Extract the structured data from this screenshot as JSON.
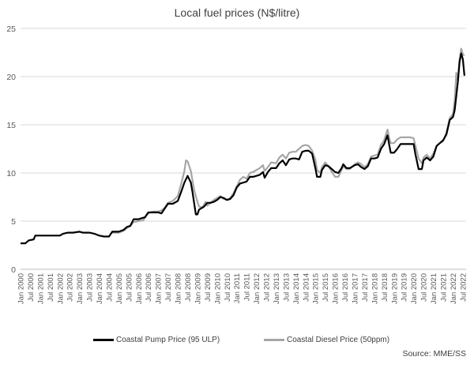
{
  "chart_data": {
    "type": "line",
    "title": "Local fuel prices (N$/litre)",
    "xlabel": "",
    "ylabel": "",
    "ylim": [
      0,
      25
    ],
    "yticks": [
      0,
      5,
      10,
      15,
      20,
      25
    ],
    "x_tick_labels": [
      "Jan 2000",
      "Jul 2000",
      "Jan 2001",
      "Jul 2001",
      "Jan 2002",
      "Jul 2002",
      "Jan 2003",
      "Jul 2003",
      "Jan 2004",
      "Jul 2004",
      "Jan 2005",
      "Jul 2005",
      "Jan 2006",
      "Jul 2006",
      "Jan 2007",
      "Jul 2007",
      "Jan 2008",
      "Jul 2008",
      "Jan 2009",
      "Jul 2009",
      "Jan 2010",
      "Jul 2010",
      "Jan 2011",
      "Jul 2011",
      "Jan 2012",
      "Jul 2012",
      "Jan 2013",
      "Jul 2013",
      "Jan 2014",
      "Jul 2014",
      "Jan 2015",
      "Jul 2015",
      "Jan 2016",
      "Jul 2016",
      "Jan 2017",
      "Jul 2017",
      "Jan 2018",
      "Jul 2018",
      "Jan 2019",
      "Jul 2019",
      "Jan 2020",
      "Jul 2020",
      "Jan 2021",
      "Jul 2021",
      "Jan 2022",
      "Jul 2022"
    ],
    "grid": true,
    "legend_position": "bottom",
    "series": [
      {
        "name": "Coastal Pump Price (95 ULP)",
        "color": "#000000",
        "points": [
          [
            "2000-01",
            2.7
          ],
          [
            "2000-04",
            2.7
          ],
          [
            "2000-06",
            3.0
          ],
          [
            "2000-09",
            3.1
          ],
          [
            "2000-10",
            3.5
          ],
          [
            "2001-01",
            3.5
          ],
          [
            "2001-07",
            3.5
          ],
          [
            "2002-01",
            3.5
          ],
          [
            "2002-03",
            3.7
          ],
          [
            "2002-06",
            3.8
          ],
          [
            "2002-09",
            3.8
          ],
          [
            "2003-01",
            3.9
          ],
          [
            "2003-03",
            3.8
          ],
          [
            "2003-07",
            3.8
          ],
          [
            "2003-10",
            3.7
          ],
          [
            "2004-01",
            3.5
          ],
          [
            "2004-04",
            3.4
          ],
          [
            "2004-07",
            3.4
          ],
          [
            "2004-09",
            3.9
          ],
          [
            "2005-01",
            3.9
          ],
          [
            "2005-04",
            4.1
          ],
          [
            "2005-06",
            4.4
          ],
          [
            "2005-08",
            4.5
          ],
          [
            "2005-10",
            5.2
          ],
          [
            "2006-01",
            5.2
          ],
          [
            "2006-05",
            5.4
          ],
          [
            "2006-07",
            5.9
          ],
          [
            "2006-10",
            5.9
          ],
          [
            "2007-01",
            5.9
          ],
          [
            "2007-03",
            5.8
          ],
          [
            "2007-05",
            6.3
          ],
          [
            "2007-07",
            6.8
          ],
          [
            "2007-10",
            6.8
          ],
          [
            "2008-01",
            7.1
          ],
          [
            "2008-03",
            8.0
          ],
          [
            "2008-05",
            9.0
          ],
          [
            "2008-07",
            9.7
          ],
          [
            "2008-09",
            9.0
          ],
          [
            "2008-10",
            8.0
          ],
          [
            "2008-12",
            5.7
          ],
          [
            "2009-01",
            5.7
          ],
          [
            "2009-02",
            6.2
          ],
          [
            "2009-05",
            6.5
          ],
          [
            "2009-07",
            6.9
          ],
          [
            "2009-09",
            6.9
          ],
          [
            "2009-11",
            7.0
          ],
          [
            "2010-01",
            7.2
          ],
          [
            "2010-03",
            7.5
          ],
          [
            "2010-05",
            7.4
          ],
          [
            "2010-07",
            7.2
          ],
          [
            "2010-09",
            7.3
          ],
          [
            "2010-11",
            7.7
          ],
          [
            "2011-01",
            8.5
          ],
          [
            "2011-03",
            8.9
          ],
          [
            "2011-05",
            9.0
          ],
          [
            "2011-07",
            9.1
          ],
          [
            "2011-09",
            9.6
          ],
          [
            "2011-11",
            9.6
          ],
          [
            "2012-01",
            9.7
          ],
          [
            "2012-03",
            9.8
          ],
          [
            "2012-05",
            10.1
          ],
          [
            "2012-06",
            9.5
          ],
          [
            "2012-08",
            10.1
          ],
          [
            "2012-10",
            10.5
          ],
          [
            "2013-01",
            10.5
          ],
          [
            "2013-03",
            11.0
          ],
          [
            "2013-05",
            11.3
          ],
          [
            "2013-07",
            10.8
          ],
          [
            "2013-09",
            11.4
          ],
          [
            "2013-11",
            11.5
          ],
          [
            "2014-01",
            11.5
          ],
          [
            "2014-03",
            11.4
          ],
          [
            "2014-05",
            12.2
          ],
          [
            "2014-07",
            12.3
          ],
          [
            "2014-09",
            12.3
          ],
          [
            "2014-11",
            12.0
          ],
          [
            "2015-01",
            10.5
          ],
          [
            "2015-02",
            9.6
          ],
          [
            "2015-04",
            9.6
          ],
          [
            "2015-05",
            10.3
          ],
          [
            "2015-07",
            10.8
          ],
          [
            "2015-09",
            10.7
          ],
          [
            "2015-11",
            10.4
          ],
          [
            "2016-01",
            10.1
          ],
          [
            "2016-03",
            10.0
          ],
          [
            "2016-05",
            10.5
          ],
          [
            "2016-06",
            10.9
          ],
          [
            "2016-08",
            10.5
          ],
          [
            "2016-10",
            10.5
          ],
          [
            "2017-01",
            10.8
          ],
          [
            "2017-03",
            10.9
          ],
          [
            "2017-05",
            10.6
          ],
          [
            "2017-07",
            10.4
          ],
          [
            "2017-09",
            10.7
          ],
          [
            "2017-11",
            11.5
          ],
          [
            "2018-01",
            11.5
          ],
          [
            "2018-03",
            11.6
          ],
          [
            "2018-05",
            12.5
          ],
          [
            "2018-07",
            13.0
          ],
          [
            "2018-09",
            13.9
          ],
          [
            "2018-10",
            13.0
          ],
          [
            "2018-11",
            12.1
          ],
          [
            "2019-01",
            12.1
          ],
          [
            "2019-03",
            12.5
          ],
          [
            "2019-05",
            13.0
          ],
          [
            "2019-07",
            13.0
          ],
          [
            "2019-09",
            13.0
          ],
          [
            "2019-11",
            13.0
          ],
          [
            "2020-01",
            13.0
          ],
          [
            "2020-02",
            12.0
          ],
          [
            "2020-04",
            10.4
          ],
          [
            "2020-06",
            10.4
          ],
          [
            "2020-07",
            11.3
          ],
          [
            "2020-09",
            11.6
          ],
          [
            "2020-11",
            11.3
          ],
          [
            "2021-01",
            11.7
          ],
          [
            "2021-03",
            12.8
          ],
          [
            "2021-05",
            13.1
          ],
          [
            "2021-07",
            13.4
          ],
          [
            "2021-09",
            14.0
          ],
          [
            "2021-11",
            15.5
          ],
          [
            "2022-01",
            15.8
          ],
          [
            "2022-02",
            16.5
          ],
          [
            "2022-03",
            18.0
          ],
          [
            "2022-04",
            19.5
          ],
          [
            "2022-05",
            21.5
          ],
          [
            "2022-06",
            22.4
          ],
          [
            "2022-07",
            21.8
          ],
          [
            "2022-08",
            20.1
          ]
        ]
      },
      {
        "name": "Coastal Diesel Price (50ppm)",
        "color": "#a6a6a6",
        "points": [
          [
            "2004-09",
            3.8
          ],
          [
            "2005-01",
            3.8
          ],
          [
            "2005-04",
            4.0
          ],
          [
            "2005-06",
            4.3
          ],
          [
            "2005-08",
            4.5
          ],
          [
            "2005-10",
            4.9
          ],
          [
            "2006-01",
            5.0
          ],
          [
            "2006-04",
            5.1
          ],
          [
            "2006-06",
            5.7
          ],
          [
            "2006-08",
            5.9
          ],
          [
            "2006-10",
            6.0
          ],
          [
            "2007-01",
            6.0
          ],
          [
            "2007-03",
            6.1
          ],
          [
            "2007-05",
            6.4
          ],
          [
            "2007-07",
            6.9
          ],
          [
            "2007-10",
            7.1
          ],
          [
            "2008-01",
            7.6
          ],
          [
            "2008-03",
            8.8
          ],
          [
            "2008-05",
            10.2
          ],
          [
            "2008-06",
            11.3
          ],
          [
            "2008-07",
            11.2
          ],
          [
            "2008-09",
            10.2
          ],
          [
            "2008-11",
            8.2
          ],
          [
            "2009-01",
            7.0
          ],
          [
            "2009-02",
            6.5
          ],
          [
            "2009-04",
            6.4
          ],
          [
            "2009-06",
            7.0
          ],
          [
            "2009-07",
            6.6
          ],
          [
            "2009-09",
            6.9
          ],
          [
            "2009-11",
            7.2
          ],
          [
            "2010-01",
            7.4
          ],
          [
            "2010-03",
            7.6
          ],
          [
            "2010-05",
            7.3
          ],
          [
            "2010-07",
            7.2
          ],
          [
            "2010-09",
            7.4
          ],
          [
            "2010-11",
            7.9
          ],
          [
            "2011-01",
            8.6
          ],
          [
            "2011-03",
            9.3
          ],
          [
            "2011-05",
            9.6
          ],
          [
            "2011-07",
            9.4
          ],
          [
            "2011-09",
            10.0
          ],
          [
            "2011-11",
            10.1
          ],
          [
            "2012-01",
            10.3
          ],
          [
            "2012-03",
            10.5
          ],
          [
            "2012-05",
            10.8
          ],
          [
            "2012-06",
            10.2
          ],
          [
            "2012-08",
            10.6
          ],
          [
            "2012-10",
            11.1
          ],
          [
            "2013-01",
            11.0
          ],
          [
            "2013-03",
            11.6
          ],
          [
            "2013-05",
            11.9
          ],
          [
            "2013-07",
            11.5
          ],
          [
            "2013-09",
            12.1
          ],
          [
            "2013-11",
            12.2
          ],
          [
            "2014-01",
            12.2
          ],
          [
            "2014-03",
            12.5
          ],
          [
            "2014-05",
            12.8
          ],
          [
            "2014-07",
            12.9
          ],
          [
            "2014-09",
            12.8
          ],
          [
            "2014-11",
            12.3
          ],
          [
            "2015-01",
            11.4
          ],
          [
            "2015-02",
            10.3
          ],
          [
            "2015-04",
            10.0
          ],
          [
            "2015-05",
            10.6
          ],
          [
            "2015-07",
            11.1
          ],
          [
            "2015-09",
            10.7
          ],
          [
            "2015-11",
            10.1
          ],
          [
            "2016-01",
            9.6
          ],
          [
            "2016-03",
            9.6
          ],
          [
            "2016-05",
            10.3
          ],
          [
            "2016-06",
            10.7
          ],
          [
            "2016-08",
            10.4
          ],
          [
            "2016-10",
            10.4
          ],
          [
            "2017-01",
            10.9
          ],
          [
            "2017-03",
            11.1
          ],
          [
            "2017-05",
            10.9
          ],
          [
            "2017-07",
            10.6
          ],
          [
            "2017-09",
            10.9
          ],
          [
            "2017-11",
            11.7
          ],
          [
            "2018-01",
            11.8
          ],
          [
            "2018-03",
            11.9
          ],
          [
            "2018-05",
            12.9
          ],
          [
            "2018-07",
            13.4
          ],
          [
            "2018-09",
            14.5
          ],
          [
            "2018-10",
            13.7
          ],
          [
            "2018-11",
            13.1
          ],
          [
            "2019-01",
            13.1
          ],
          [
            "2019-03",
            13.5
          ],
          [
            "2019-05",
            13.7
          ],
          [
            "2019-07",
            13.7
          ],
          [
            "2019-09",
            13.7
          ],
          [
            "2019-11",
            13.7
          ],
          [
            "2020-01",
            13.6
          ],
          [
            "2020-02",
            12.9
          ],
          [
            "2020-04",
            11.5
          ],
          [
            "2020-06",
            11.0
          ],
          [
            "2020-07",
            11.6
          ],
          [
            "2020-09",
            11.9
          ],
          [
            "2020-11",
            11.5
          ],
          [
            "2021-01",
            12.0
          ],
          [
            "2021-03",
            12.8
          ],
          [
            "2021-05",
            13.1
          ],
          [
            "2021-07",
            13.3
          ],
          [
            "2021-09",
            14.2
          ],
          [
            "2021-11",
            15.7
          ],
          [
            "2022-01",
            16.1
          ],
          [
            "2022-02",
            17.5
          ],
          [
            "2022-03",
            20.4
          ],
          [
            "2022-04",
            19.5
          ],
          [
            "2022-05",
            21.8
          ],
          [
            "2022-06",
            22.9
          ],
          [
            "2022-07",
            22.3
          ],
          [
            "2022-08",
            22.2
          ]
        ]
      }
    ],
    "source": "Source: MME/SS"
  }
}
